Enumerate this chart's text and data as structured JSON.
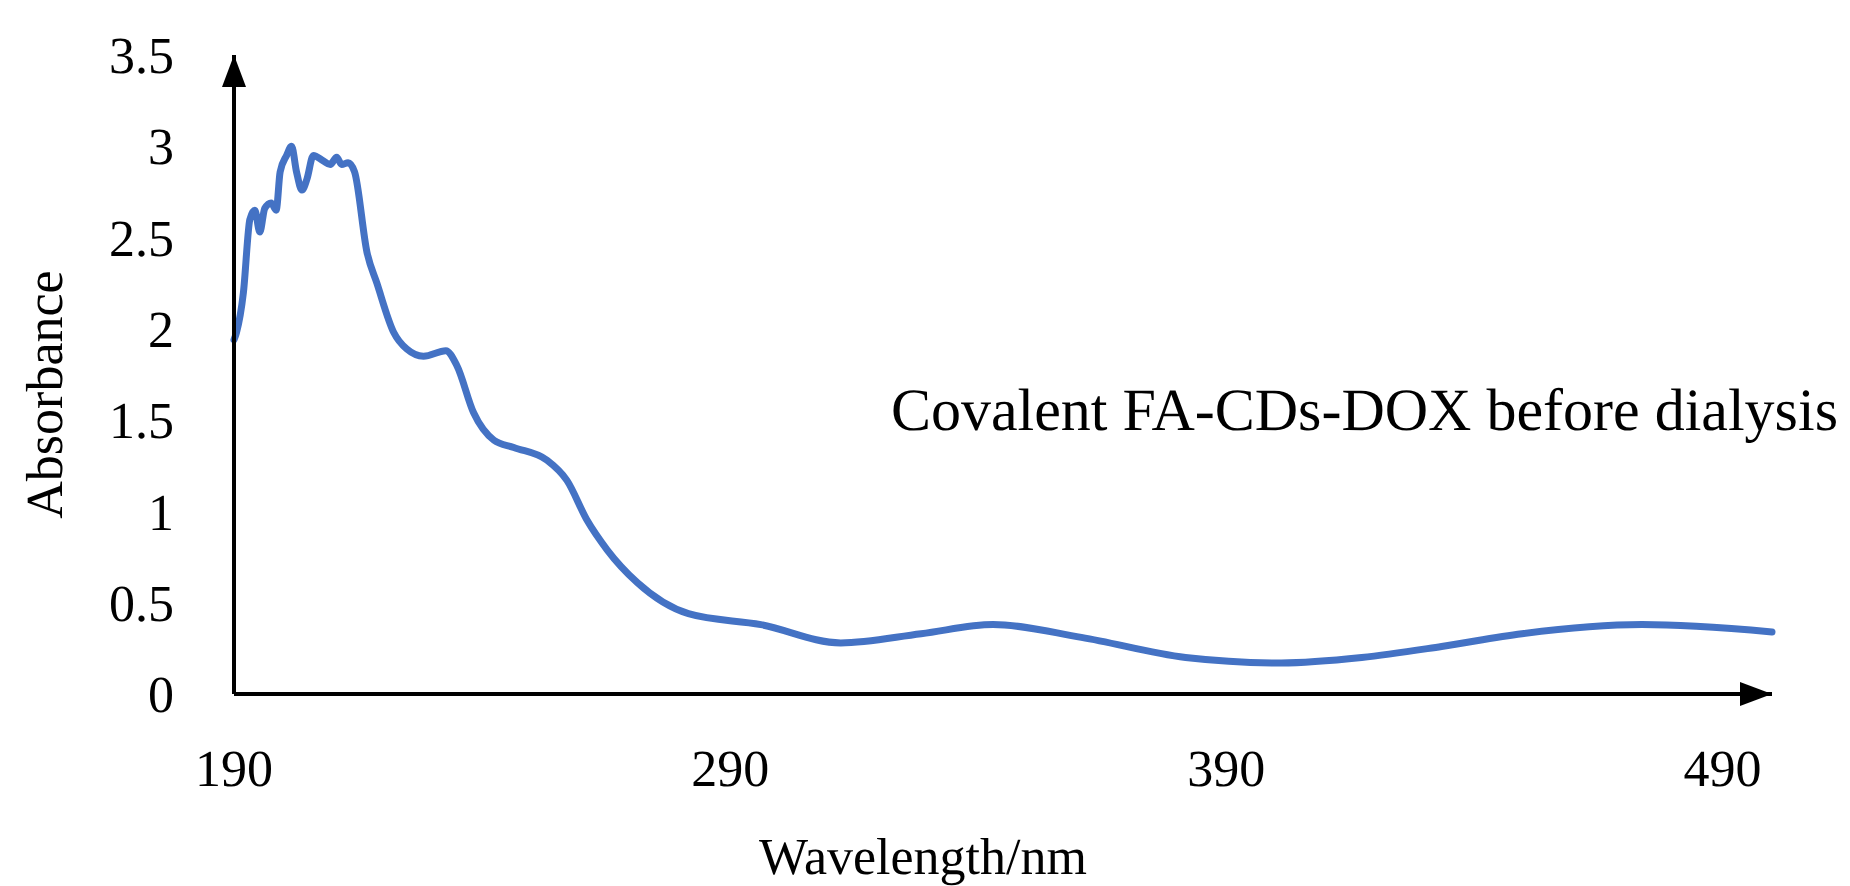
{
  "chart_data": {
    "type": "line",
    "xlabel": "Wavelength/nm",
    "ylabel": "Absorbance",
    "annotations": [
      "Covalent FA-CDs-DOX before dialysis"
    ],
    "xlim": [
      190,
      500
    ],
    "xticks": [
      190,
      290,
      390,
      490
    ],
    "ylim": [
      0,
      3.5
    ],
    "yticks": [
      0,
      0.5,
      1,
      1.5,
      2,
      2.5,
      3,
      3.5
    ],
    "grid": false,
    "marker": "none",
    "line_style": "solid",
    "series": [
      {
        "color": "#4472c4",
        "x": [
          190,
          190.5,
          191.9,
          193.2,
          194.2,
          195.2,
          196.2,
          197.5,
          198.5,
          199.3,
          200.6,
          201.6,
          202.6,
          203.7,
          204.7,
          206,
          208,
          209.4,
          210.7,
          211.7,
          213,
          214.3,
          216.8,
          218.8,
          222.2,
          224.8,
          228.2,
          232.7,
          234.9,
          238.3,
          242.4,
          246.4,
          253.1,
          257.1,
          261.2,
          265.2,
          271.3,
          281.6,
          296.2,
          312.3,
          328.5,
          343,
          360.8,
          381.8,
          401.1,
          417.3,
          433.4,
          449.6,
          473.8,
          500
        ],
        "values": [
          1.94,
          1.98,
          2.2,
          2.6,
          2.65,
          2.53,
          2.66,
          2.69,
          2.65,
          2.86,
          2.95,
          3.0,
          2.86,
          2.76,
          2.82,
          2.95,
          2.92,
          2.9,
          2.94,
          2.9,
          2.91,
          2.86,
          2.42,
          2.25,
          1.98,
          1.89,
          1.85,
          1.88,
          1.8,
          1.54,
          1.39,
          1.35,
          1.28,
          1.17,
          0.95,
          0.79,
          0.61,
          0.44,
          0.38,
          0.28,
          0.33,
          0.38,
          0.31,
          0.2,
          0.17,
          0.2,
          0.26,
          0.33,
          0.38,
          0.34
        ]
      }
    ]
  }
}
